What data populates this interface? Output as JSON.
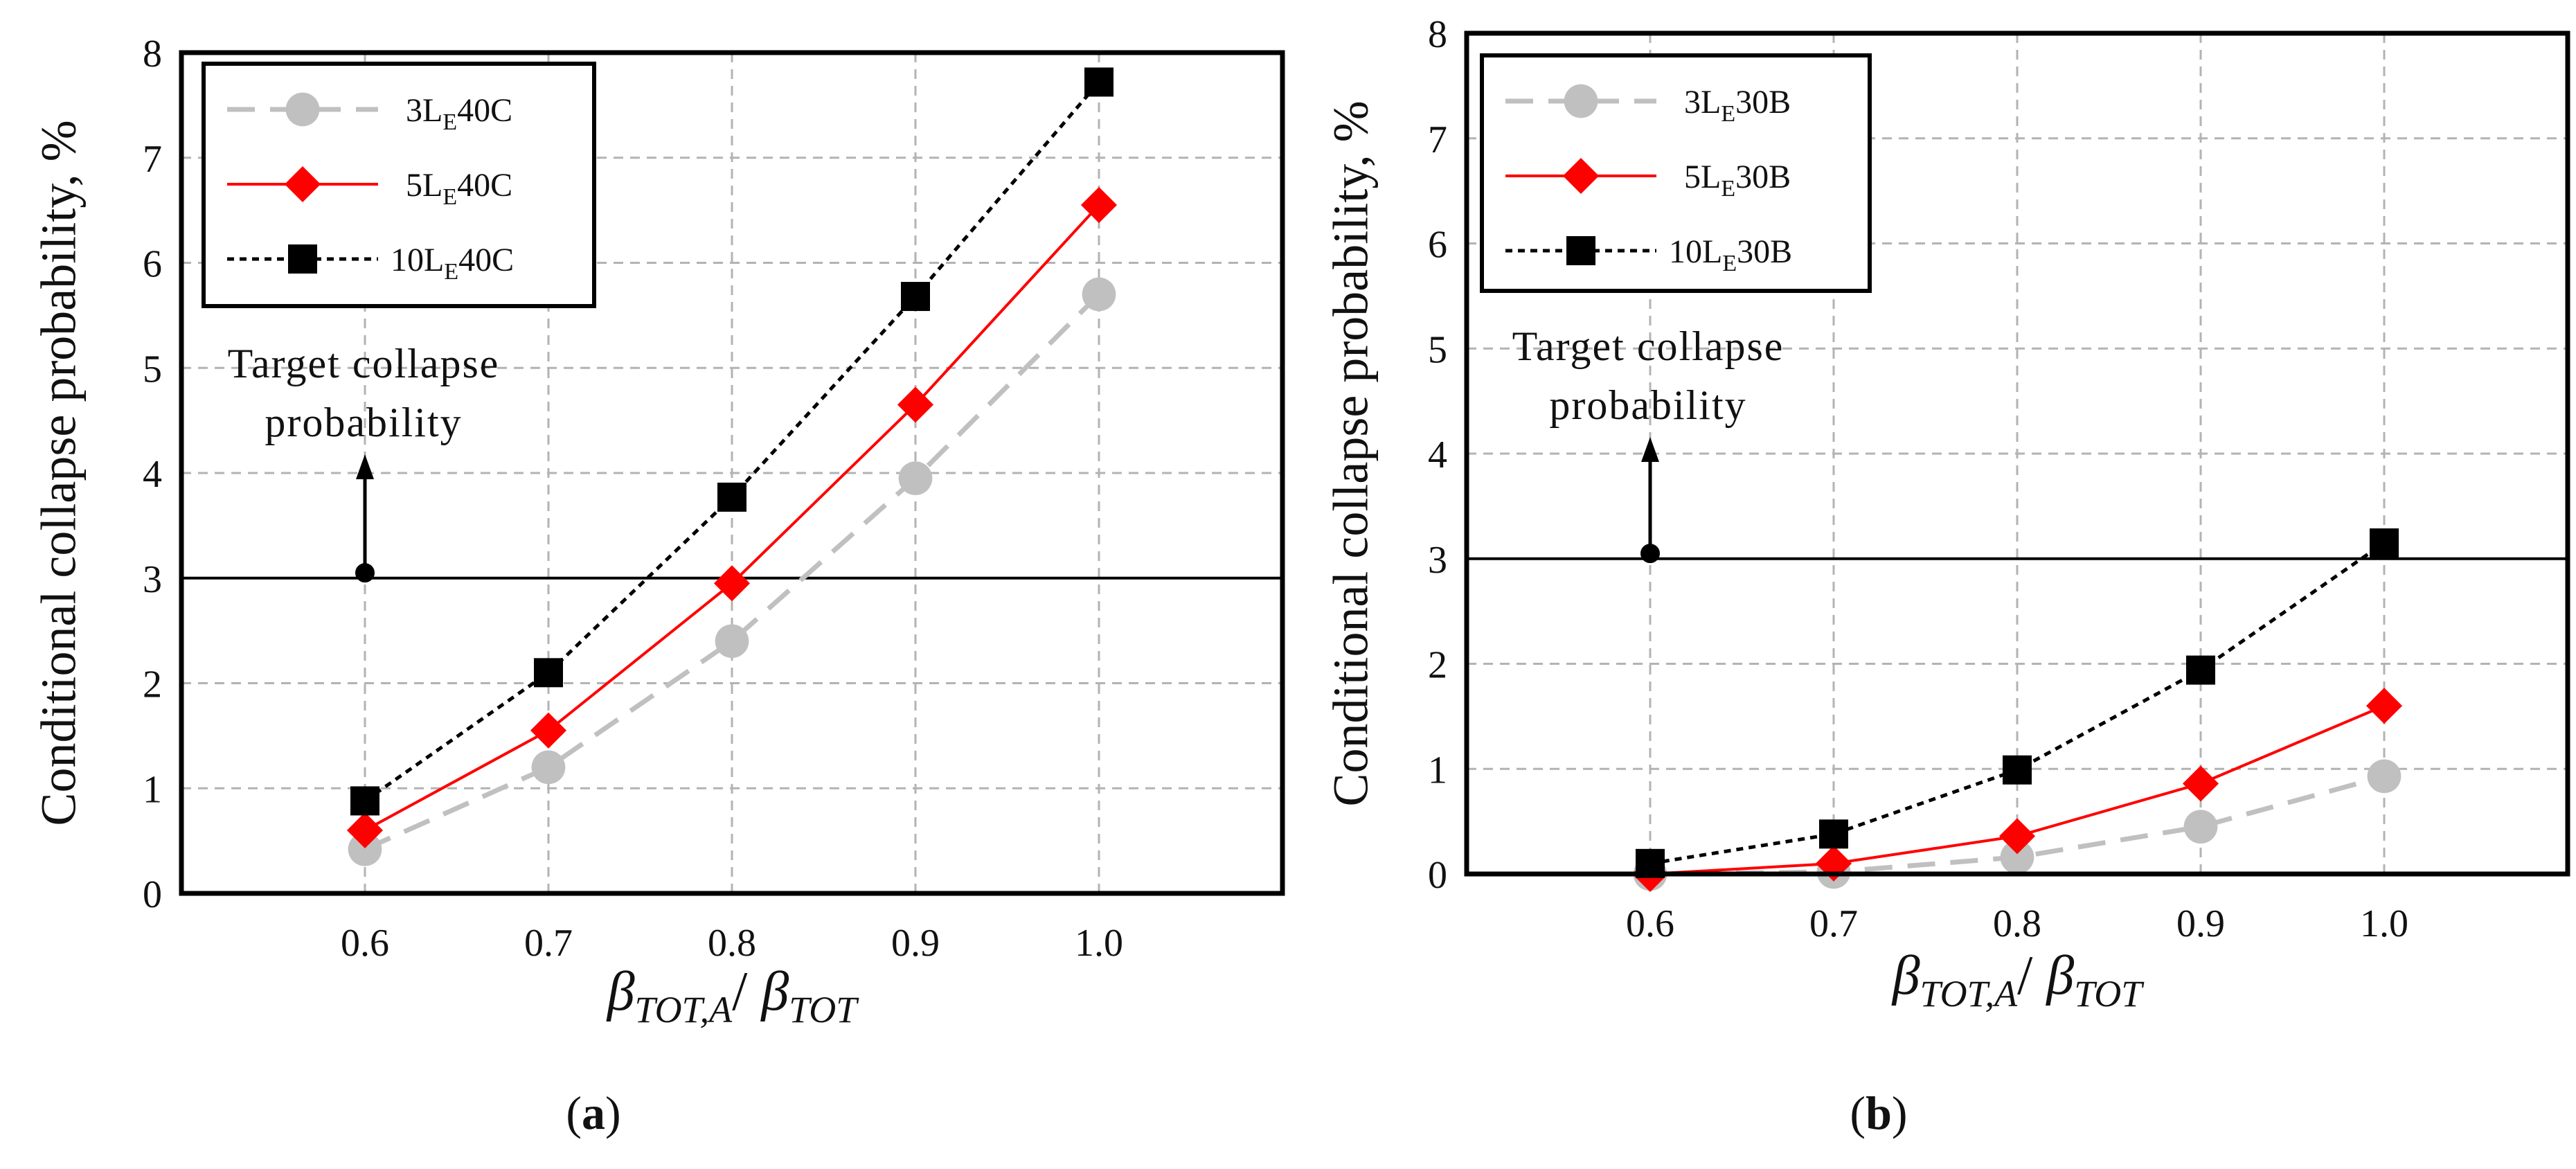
{
  "chart_data": [
    {
      "type": "line",
      "panel_label": "(a)",
      "panel_letter": "a",
      "xlabel": {
        "main": "β",
        "sub1": "TOT,A",
        "sep": "/ ",
        "main2": "β",
        "sub2": "TOT"
      },
      "ylabel": "Conditional collapse probability, %",
      "xlim": [
        0.5,
        1.1
      ],
      "ylim": [
        0,
        8
      ],
      "grid": true,
      "x_ticks": [
        "0.6",
        "0.7",
        "0.8",
        "0.9",
        "1.0"
      ],
      "x_tick_values": [
        0.6,
        0.7,
        0.8,
        0.9,
        1.0
      ],
      "y_ticks": [
        "0",
        "1",
        "2",
        "3",
        "4",
        "5",
        "6",
        "7",
        "8"
      ],
      "y_tick_values": [
        0,
        1,
        2,
        3,
        4,
        5,
        6,
        7,
        8
      ],
      "x": [
        0.6,
        0.7,
        0.8,
        0.9,
        1.0
      ],
      "series": [
        {
          "name": "3LE40C",
          "label_pre": "3L",
          "label_sub": "E",
          "label_post": "40C",
          "values": [
            0.42,
            1.2,
            2.4,
            3.95,
            5.7
          ],
          "color": "#c0c0c0",
          "marker": "circle",
          "dash": "long"
        },
        {
          "name": "5LE40C",
          "label_pre": "5L",
          "label_sub": "E",
          "label_post": "40C",
          "values": [
            0.6,
            1.55,
            2.95,
            4.65,
            6.55
          ],
          "color": "#ff0000",
          "marker": "diamond",
          "dash": "solid"
        },
        {
          "name": "10LE40C",
          "label_pre": "10L",
          "label_sub": "E",
          "label_post": "40C",
          "values": [
            0.88,
            2.1,
            3.77,
            5.68,
            7.72
          ],
          "color": "#000000",
          "marker": "square",
          "dash": "short"
        }
      ],
      "legend_position": "top-left",
      "target_line": 3,
      "annotation": {
        "line1": "Target collapse",
        "line2": "probability",
        "x": 0.6,
        "y": 3.05
      }
    },
    {
      "type": "line",
      "panel_label": "(b)",
      "panel_letter": "b",
      "xlabel": {
        "main": "β",
        "sub1": "TOT,A",
        "sep": "/ ",
        "main2": "β",
        "sub2": "TOT"
      },
      "ylabel": "Conditional collapse probability, %",
      "xlim": [
        0.5,
        1.1
      ],
      "ylim": [
        0,
        8
      ],
      "grid": true,
      "x_ticks": [
        "0.6",
        "0.7",
        "0.8",
        "0.9",
        "1.0"
      ],
      "x_tick_values": [
        0.6,
        0.7,
        0.8,
        0.9,
        1.0
      ],
      "y_ticks": [
        "0",
        "1",
        "2",
        "3",
        "4",
        "5",
        "6",
        "7",
        "8"
      ],
      "y_tick_values": [
        0,
        1,
        2,
        3,
        4,
        5,
        6,
        7,
        8
      ],
      "x": [
        0.6,
        0.7,
        0.8,
        0.9,
        1.0
      ],
      "series": [
        {
          "name": "3LE30B",
          "label_pre": "3L",
          "label_sub": "E",
          "label_post": "30B",
          "values": [
            0.0,
            0.02,
            0.16,
            0.45,
            0.93
          ],
          "color": "#c0c0c0",
          "marker": "circle",
          "dash": "long"
        },
        {
          "name": "5LE30B",
          "label_pre": "5L",
          "label_sub": "E",
          "label_post": "30B",
          "values": [
            0.0,
            0.1,
            0.36,
            0.86,
            1.6
          ],
          "color": "#ff0000",
          "marker": "diamond",
          "dash": "solid"
        },
        {
          "name": "10LE30B",
          "label_pre": "10L",
          "label_sub": "E",
          "label_post": "30B",
          "values": [
            0.1,
            0.38,
            0.99,
            1.94,
            3.15
          ],
          "color": "#000000",
          "marker": "square",
          "dash": "short"
        }
      ],
      "legend_position": "top-left",
      "target_line": 3,
      "annotation": {
        "line1": "Target collapse",
        "line2": "probability",
        "x": 0.6,
        "y": 3.05
      }
    }
  ]
}
